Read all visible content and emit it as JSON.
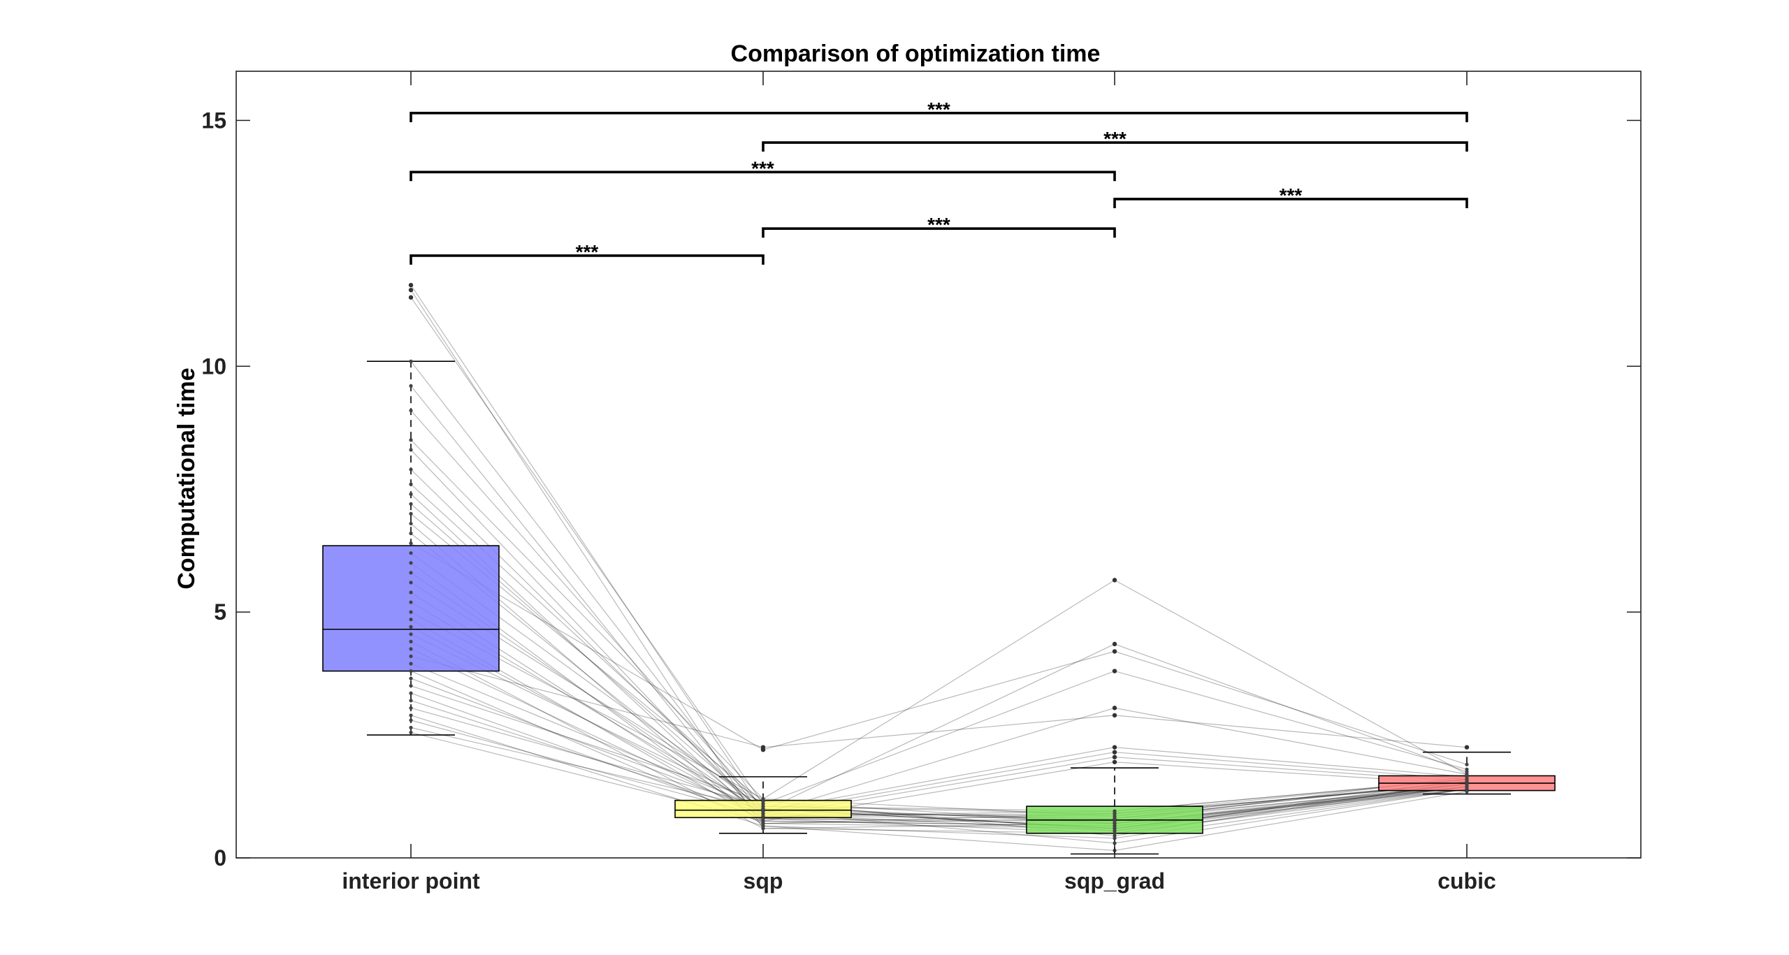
{
  "chart_data": {
    "type": "box",
    "title": "Comparison of optimization time",
    "xlabel": "",
    "ylabel": "Computational time",
    "ylim": [
      0,
      16
    ],
    "yticks": [
      0,
      5,
      10,
      15
    ],
    "grid": false,
    "legend": "none",
    "categories": [
      "interior point",
      "sqp",
      "sqp_grad",
      "cubic"
    ],
    "colors": [
      "#7f7fff",
      "#ffff7f",
      "#7fdf5f",
      "#ff7f7f"
    ],
    "boxes": [
      {
        "category": "interior point",
        "whisker_low": 2.5,
        "q1": 3.8,
        "median": 4.65,
        "q3": 6.35,
        "whisker_high": 10.1
      },
      {
        "category": "sqp",
        "whisker_low": 0.5,
        "q1": 0.82,
        "median": 0.97,
        "q3": 1.17,
        "whisker_high": 1.65
      },
      {
        "category": "sqp_grad",
        "whisker_low": 0.08,
        "q1": 0.5,
        "median": 0.77,
        "q3": 1.05,
        "whisker_high": 1.83
      },
      {
        "category": "cubic",
        "whisker_low": 1.3,
        "q1": 1.37,
        "median": 1.52,
        "q3": 1.67,
        "whisker_high": 2.15
      }
    ],
    "outliers": [
      {
        "category": "interior point",
        "values": [
          11.65,
          11.55,
          11.4
        ]
      },
      {
        "category": "sqp",
        "values": [
          2.2,
          2.25
        ]
      },
      {
        "category": "sqp_grad",
        "values": [
          5.65,
          4.35,
          4.2,
          3.8,
          3.05,
          2.9,
          2.25,
          2.15,
          2.05,
          1.95
        ]
      },
      {
        "category": "cubic",
        "values": [
          2.25
        ]
      }
    ],
    "paired_lines": [
      [
        11.65,
        0.95,
        0.8,
        1.55
      ],
      [
        11.55,
        0.6,
        0.7,
        1.45
      ],
      [
        11.4,
        1.1,
        0.55,
        1.6
      ],
      [
        10.1,
        0.85,
        0.9,
        1.5
      ],
      [
        9.6,
        0.7,
        0.6,
        1.4
      ],
      [
        9.1,
        1.0,
        0.75,
        1.65
      ],
      [
        8.5,
        1.2,
        5.65,
        1.7
      ],
      [
        8.3,
        0.8,
        0.5,
        1.45
      ],
      [
        7.9,
        0.9,
        0.85,
        1.55
      ],
      [
        7.6,
        1.05,
        0.95,
        1.6
      ],
      [
        7.4,
        0.75,
        0.65,
        1.5
      ],
      [
        7.2,
        0.95,
        4.35,
        1.75
      ],
      [
        7.0,
        1.15,
        0.7,
        1.45
      ],
      [
        6.8,
        0.65,
        0.4,
        1.4
      ],
      [
        6.6,
        0.85,
        0.8,
        1.55
      ],
      [
        6.4,
        2.2,
        4.2,
        1.9
      ],
      [
        6.2,
        1.0,
        0.6,
        1.5
      ],
      [
        6.0,
        0.7,
        0.9,
        1.6
      ],
      [
        5.8,
        0.9,
        0.55,
        1.45
      ],
      [
        5.6,
        1.1,
        3.8,
        1.8
      ],
      [
        5.4,
        0.8,
        0.75,
        1.5
      ],
      [
        5.2,
        0.95,
        0.3,
        1.4
      ],
      [
        5.0,
        1.2,
        0.85,
        1.55
      ],
      [
        4.85,
        0.75,
        0.65,
        1.45
      ],
      [
        4.7,
        0.9,
        3.05,
        1.7
      ],
      [
        4.55,
        1.05,
        0.7,
        1.5
      ],
      [
        4.4,
        0.6,
        0.5,
        1.4
      ],
      [
        4.25,
        0.85,
        0.95,
        1.6
      ],
      [
        4.1,
        2.25,
        2.9,
        2.25
      ],
      [
        3.95,
        1.0,
        0.6,
        1.5
      ],
      [
        3.8,
        0.7,
        0.8,
        1.45
      ],
      [
        3.65,
        0.95,
        2.25,
        1.65
      ],
      [
        3.5,
        1.15,
        0.45,
        1.55
      ],
      [
        3.35,
        0.8,
        0.7,
        1.4
      ],
      [
        3.2,
        0.9,
        2.15,
        1.6
      ],
      [
        3.05,
        1.05,
        0.9,
        1.5
      ],
      [
        2.9,
        0.65,
        0.15,
        1.35
      ],
      [
        2.8,
        0.85,
        2.05,
        1.55
      ],
      [
        2.65,
        1.0,
        0.6,
        1.45
      ],
      [
        2.55,
        0.75,
        1.95,
        1.5
      ]
    ],
    "significance": [
      {
        "from": "interior point",
        "to": "sqp",
        "y": 12.25,
        "label": "***"
      },
      {
        "from": "sqp",
        "to": "sqp_grad",
        "y": 12.8,
        "label": "***"
      },
      {
        "from": "sqp_grad",
        "to": "cubic",
        "y": 13.4,
        "label": "***"
      },
      {
        "from": "interior point",
        "to": "sqp_grad",
        "y": 13.95,
        "label": "***"
      },
      {
        "from": "sqp",
        "to": "cubic",
        "y": 14.55,
        "label": "***"
      },
      {
        "from": "interior point",
        "to": "cubic",
        "y": 15.15,
        "label": "***"
      }
    ]
  }
}
